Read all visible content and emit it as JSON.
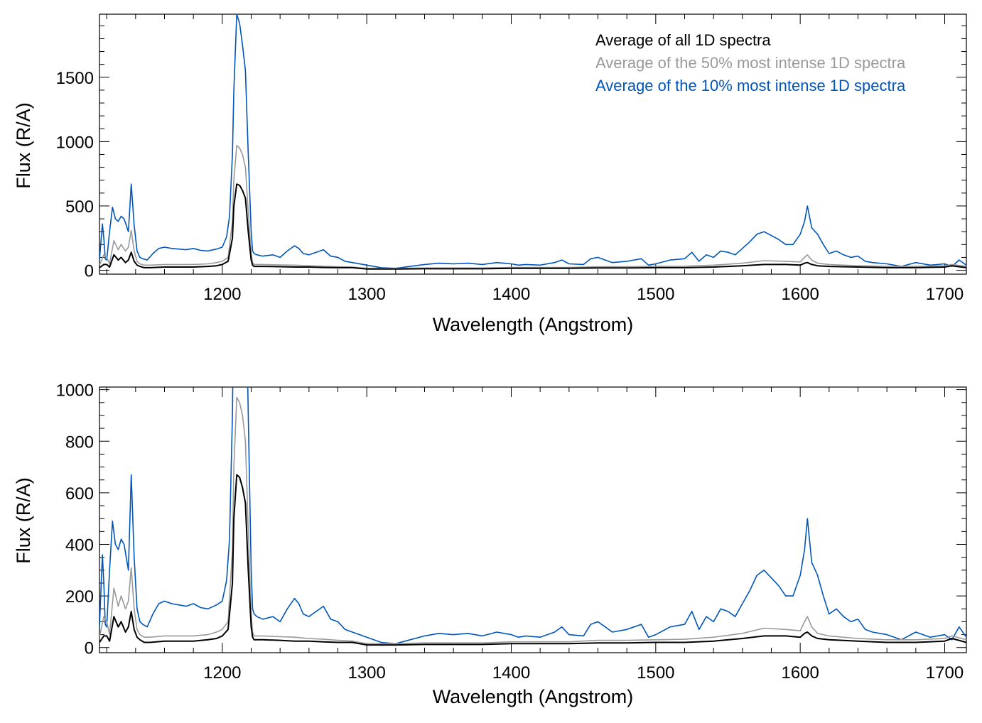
{
  "chart_data": [
    {
      "type": "line",
      "panel": "top",
      "xlabel": "Wavelength (Angstrom)",
      "ylabel": "Flux (R/A)",
      "xlim": [
        1115,
        1715
      ],
      "ylim": [
        -30,
        1990
      ],
      "x_major_ticks": [
        1200,
        1300,
        1400,
        1500,
        1600,
        1700
      ],
      "x_minor_step": 20,
      "y_major_ticks": [
        0,
        500,
        1000,
        1500
      ],
      "y_minor_step": 100,
      "legend_position": "top-right",
      "series": [
        {
          "name": "Average of all 1D spectra",
          "color": "#000000",
          "x": [
            1115,
            1118,
            1120,
            1122,
            1125,
            1128,
            1130,
            1133,
            1135,
            1137,
            1139,
            1141,
            1143,
            1146,
            1150,
            1160,
            1170,
            1180,
            1190,
            1196,
            1200,
            1204,
            1207,
            1208,
            1210,
            1212,
            1214,
            1216,
            1218,
            1220,
            1221,
            1222,
            1224,
            1228,
            1240,
            1250,
            1260,
            1270,
            1280,
            1290,
            1300,
            1320,
            1340,
            1360,
            1380,
            1400,
            1420,
            1440,
            1460,
            1480,
            1500,
            1520,
            1540,
            1560,
            1575,
            1590,
            1600,
            1603,
            1605,
            1608,
            1612,
            1620,
            1640,
            1660,
            1680,
            1700,
            1705,
            1715
          ],
          "y": [
            20,
            45,
            45,
            25,
            120,
            80,
            100,
            60,
            80,
            140,
            70,
            40,
            30,
            20,
            20,
            25,
            25,
            25,
            30,
            35,
            45,
            70,
            250,
            500,
            670,
            660,
            620,
            560,
            300,
            80,
            40,
            30,
            30,
            30,
            28,
            25,
            25,
            22,
            20,
            20,
            10,
            10,
            12,
            12,
            12,
            15,
            15,
            15,
            18,
            18,
            20,
            20,
            25,
            35,
            45,
            45,
            40,
            55,
            60,
            45,
            35,
            30,
            25,
            20,
            20,
            25,
            35,
            20
          ]
        },
        {
          "name": "Average of the 50% most intense 1D spectra",
          "color": "#999999",
          "x": [
            1115,
            1118,
            1120,
            1122,
            1125,
            1128,
            1130,
            1133,
            1135,
            1137,
            1139,
            1141,
            1143,
            1146,
            1150,
            1160,
            1170,
            1180,
            1190,
            1196,
            1200,
            1204,
            1207,
            1208,
            1210,
            1212,
            1214,
            1216,
            1218,
            1220,
            1221,
            1222,
            1224,
            1228,
            1240,
            1250,
            1260,
            1270,
            1280,
            1290,
            1300,
            1320,
            1340,
            1360,
            1380,
            1400,
            1420,
            1440,
            1460,
            1480,
            1500,
            1520,
            1540,
            1560,
            1575,
            1590,
            1600,
            1603,
            1605,
            1608,
            1612,
            1620,
            1640,
            1660,
            1680,
            1700,
            1705,
            1715
          ],
          "y": [
            40,
            120,
            100,
            50,
            230,
            160,
            200,
            150,
            180,
            310,
            150,
            70,
            50,
            40,
            40,
            45,
            45,
            45,
            50,
            60,
            70,
            100,
            380,
            700,
            970,
            950,
            900,
            800,
            450,
            130,
            60,
            45,
            45,
            45,
            42,
            40,
            35,
            32,
            28,
            25,
            15,
            15,
            18,
            18,
            18,
            22,
            22,
            22,
            28,
            28,
            30,
            32,
            40,
            55,
            75,
            70,
            65,
            100,
            120,
            80,
            55,
            45,
            35,
            30,
            30,
            35,
            45,
            30
          ]
        },
        {
          "name": "Average of the 10% most intense 1D spectra",
          "color": "#0055bb",
          "x": [
            1115,
            1117,
            1118,
            1119,
            1120,
            1122,
            1124,
            1126,
            1128,
            1130,
            1132,
            1135,
            1137,
            1139,
            1141,
            1143,
            1145,
            1148,
            1152,
            1156,
            1160,
            1165,
            1170,
            1175,
            1180,
            1185,
            1190,
            1196,
            1200,
            1203,
            1205,
            1207,
            1208,
            1210,
            1212,
            1214,
            1216,
            1218,
            1220,
            1221,
            1222,
            1224,
            1228,
            1235,
            1240,
            1245,
            1250,
            1253,
            1256,
            1260,
            1265,
            1270,
            1275,
            1280,
            1285,
            1290,
            1300,
            1310,
            1320,
            1330,
            1340,
            1350,
            1360,
            1370,
            1380,
            1390,
            1395,
            1400,
            1405,
            1410,
            1420,
            1430,
            1435,
            1440,
            1450,
            1455,
            1460,
            1465,
            1470,
            1480,
            1490,
            1495,
            1500,
            1510,
            1520,
            1525,
            1530,
            1535,
            1540,
            1545,
            1550,
            1555,
            1560,
            1565,
            1570,
            1575,
            1580,
            1585,
            1590,
            1595,
            1600,
            1603,
            1605,
            1608,
            1612,
            1616,
            1620,
            1625,
            1630,
            1635,
            1640,
            1645,
            1650,
            1660,
            1670,
            1680,
            1690,
            1700,
            1705,
            1710,
            1715
          ],
          "y": [
            80,
            360,
            250,
            90,
            80,
            300,
            490,
            400,
            380,
            420,
            400,
            300,
            670,
            350,
            150,
            100,
            90,
            80,
            130,
            170,
            180,
            170,
            165,
            160,
            170,
            155,
            150,
            165,
            180,
            260,
            420,
            900,
            1400,
            1990,
            1920,
            1750,
            1550,
            900,
            300,
            150,
            130,
            120,
            110,
            120,
            100,
            150,
            190,
            170,
            130,
            120,
            140,
            160,
            110,
            100,
            70,
            60,
            40,
            20,
            15,
            30,
            45,
            55,
            50,
            55,
            45,
            60,
            55,
            50,
            40,
            45,
            40,
            60,
            80,
            50,
            45,
            90,
            100,
            80,
            60,
            70,
            90,
            40,
            50,
            80,
            90,
            140,
            70,
            120,
            100,
            150,
            140,
            120,
            170,
            220,
            280,
            300,
            270,
            240,
            200,
            200,
            280,
            380,
            500,
            330,
            280,
            200,
            130,
            150,
            120,
            100,
            110,
            70,
            60,
            50,
            30,
            60,
            40,
            50,
            30,
            80,
            40
          ]
        }
      ]
    },
    {
      "type": "line",
      "panel": "bottom",
      "xlabel": "Wavelength (Angstrom)",
      "ylabel": "Flux (R/A)",
      "xlim": [
        1115,
        1715
      ],
      "ylim": [
        -20,
        1010
      ],
      "x_major_ticks": [
        1200,
        1300,
        1400,
        1500,
        1600,
        1700
      ],
      "x_minor_step": 20,
      "y_major_ticks": [
        0,
        200,
        400,
        600,
        800,
        1000
      ],
      "y_minor_step": 50,
      "legend_position": "none",
      "series_same_as_top_panel": true
    }
  ],
  "legend": {
    "items": [
      {
        "label": "Average of all 1D spectra",
        "color": "#000000"
      },
      {
        "label": "Average of the 50% most intense 1D spectra",
        "color": "#999999"
      },
      {
        "label": "Average of the 10% most intense 1D spectra",
        "color": "#0055bb"
      }
    ]
  }
}
